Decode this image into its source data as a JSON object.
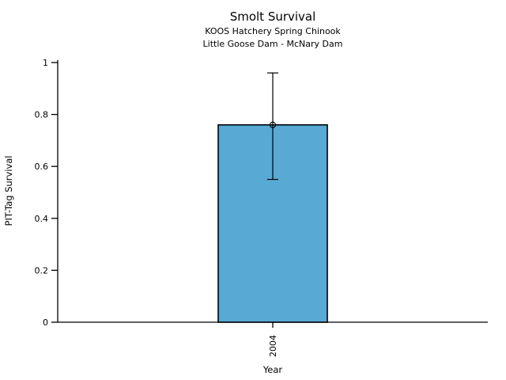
{
  "chart_data": {
    "type": "bar",
    "title": "Smolt Survival",
    "subtitle1": "KOOS Hatchery Spring Chinook",
    "subtitle2": "Little Goose Dam - McNary Dam",
    "xlabel": "Year",
    "ylabel": "PIT-Tag Survival",
    "categories": [
      "2004"
    ],
    "values": [
      0.76
    ],
    "error_low": [
      0.55
    ],
    "error_high": [
      0.96
    ],
    "yticks": [
      0,
      0.2,
      0.4,
      0.6,
      0.8,
      1
    ],
    "ylim": [
      0,
      1.01
    ],
    "bar_color": "#58A9D4",
    "axis_color": "#000000",
    "background_color": "#ffffff",
    "grid": false,
    "legend": null,
    "marker": "open-circle",
    "x_tick_label_rotation_deg": -90
  }
}
